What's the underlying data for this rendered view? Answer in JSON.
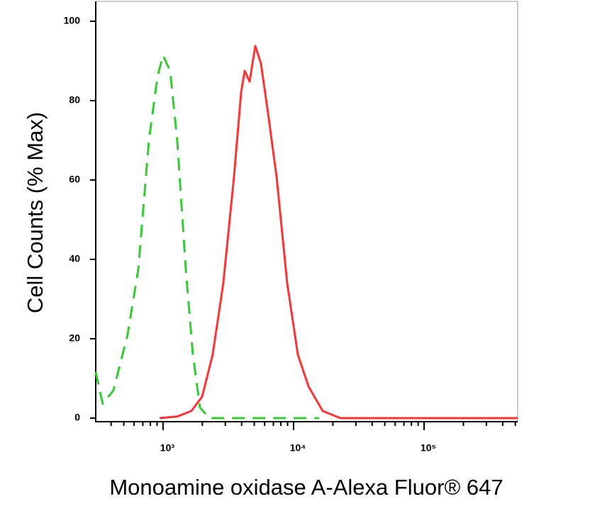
{
  "chart_data": {
    "type": "line",
    "xlabel": "Monoamine oxidase A-Alexa Fluor® 647",
    "ylabel": "Cell Counts (% Max)",
    "xscale": "log",
    "xlim": [
      305,
      521000
    ],
    "xticks": [
      {
        "value": 1000,
        "label": "10³"
      },
      {
        "value": 10000,
        "label": "10⁴"
      },
      {
        "value": 100000,
        "label": "10⁵"
      }
    ],
    "ylim": [
      -0.9,
      105
    ],
    "yticks": [
      0,
      20,
      40,
      60,
      80,
      100
    ],
    "series": [
      {
        "color": "#33cc33",
        "dash": true,
        "x": [
          305,
          345,
          417,
          535,
          646,
          779,
          906,
          1000,
          1133,
          1284,
          1493,
          1692,
          1917,
          2255,
          3083,
          15700
        ],
        "values": [
          11.6,
          3.6,
          7,
          21,
          37.5,
          70,
          86,
          91.4,
          87.5,
          70,
          37.5,
          16,
          2.7,
          0,
          0,
          0
        ]
      },
      {
        "color": "#ff3333",
        "dash": false,
        "x": [
          939,
          1284,
          1649,
          1991,
          2399,
          2896,
          3493,
          3962,
          4218,
          4603,
          5090,
          5623,
          6372,
          7413,
          8937,
          10780,
          13000,
          16710,
          22850,
          521000
        ],
        "values": [
          0,
          0.4,
          1.8,
          5.4,
          16,
          34,
          60.7,
          82,
          87.5,
          84.8,
          93.8,
          89.3,
          76.8,
          60.7,
          34,
          16,
          8,
          1.8,
          0,
          0
        ]
      }
    ]
  }
}
